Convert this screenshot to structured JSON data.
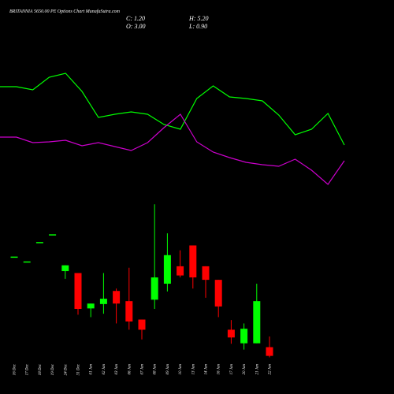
{
  "chart_data": [
    {
      "type": "candlestick",
      "title": "BRITANNIA 5650.00 PE Options  Chart MunafaSutra.com",
      "ohlc_text": [
        "C: 1.20",
        "H: 5.20",
        "O: 3.00",
        "L: 0.90"
      ],
      "categories": [
        "16 Dec",
        "17 Dec",
        "18 Dec",
        "19 Dec",
        "24 Dec",
        "31 Dec",
        "01 Jan",
        "02 Jan",
        "03 Jan",
        "06 Jan",
        "07 Jan",
        "08 Jan",
        "09 Jan",
        "10 Jan",
        "13 Jan",
        "14 Jan",
        "16 Jan",
        "17 Jan",
        "20 Jan",
        "21 Jan",
        "22 Jan"
      ],
      "open": [
        21.7,
        20.7,
        24.7,
        26.3,
        18.7,
        18.3,
        11.0,
        11.9,
        14.6,
        12.5,
        8.7,
        12.8,
        16.1,
        19.7,
        24.0,
        19.7,
        16.9,
        6.6,
        3.8,
        3.8,
        3.0
      ],
      "high": [
        21.7,
        20.7,
        24.7,
        26.3,
        19.9,
        18.3,
        12.0,
        18.3,
        15.1,
        19.4,
        8.7,
        32.5,
        26.5,
        23.0,
        24.0,
        19.7,
        16.9,
        8.6,
        7.9,
        16.1,
        5.2
      ],
      "low": [
        21.7,
        20.7,
        24.7,
        26.3,
        17.1,
        9.7,
        9.2,
        9.9,
        7.9,
        6.6,
        4.6,
        10.9,
        14.5,
        17.4,
        15.1,
        13.2,
        9.2,
        3.7,
        2.5,
        3.8,
        0.9
      ],
      "close": [
        21.7,
        20.7,
        24.7,
        26.3,
        19.9,
        10.9,
        12.0,
        13.0,
        12.0,
        8.3,
        6.6,
        17.4,
        22.0,
        17.8,
        17.4,
        16.9,
        11.4,
        5.0,
        6.8,
        12.5,
        1.2
      ],
      "up_color": "#00ff00",
      "down_color": "#ff0000",
      "ylim": [
        0,
        34
      ]
    },
    {
      "type": "line",
      "ylim": [
        0,
        250
      ],
      "series": [
        {
          "color": "#00ff00",
          "values": [
            140,
            140,
            136,
            152,
            157,
            134,
            101,
            105,
            108,
            105,
            92,
            86,
            125,
            141,
            127,
            125,
            122,
            104,
            79,
            86,
            106,
            66
          ]
        },
        {
          "color": "#cc00cc",
          "values": [
            76,
            76,
            69,
            70,
            72,
            65,
            69,
            64,
            59,
            69,
            88,
            105,
            70,
            57,
            50,
            44,
            41,
            39,
            48,
            34,
            16,
            46
          ]
        }
      ]
    }
  ]
}
